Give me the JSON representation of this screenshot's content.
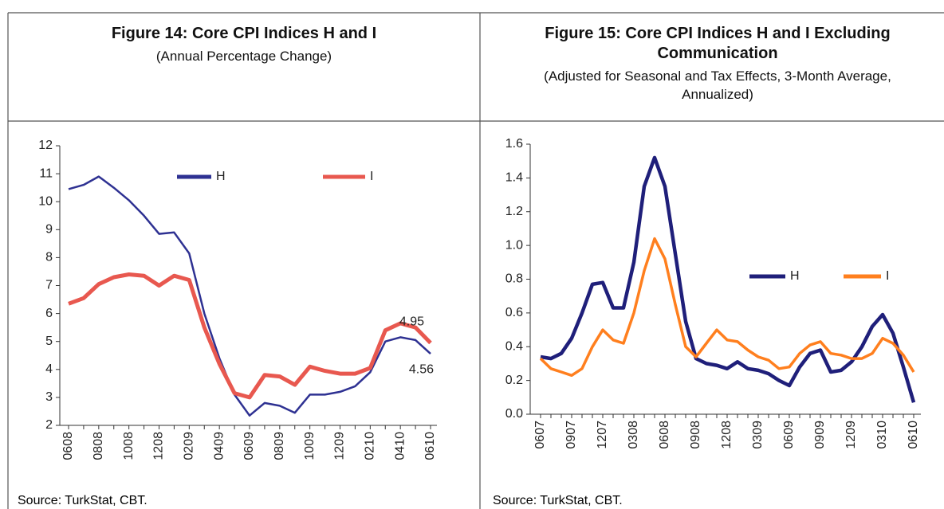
{
  "chart_data": [
    {
      "type": "line",
      "title": "Figure 14: Core CPI Indices H and I",
      "subtitle": "(Annual Percentage Change)",
      "source": "Source: TurkStat, CBT.",
      "categories": [
        "0608",
        null,
        "0808",
        null,
        "1008",
        null,
        "1208",
        null,
        "0209",
        null,
        "0409",
        null,
        "0609",
        null,
        "0809",
        null,
        "1009",
        null,
        "1209",
        null,
        "0210",
        null,
        "0410",
        null,
        "0610"
      ],
      "ylim": [
        2,
        12
      ],
      "yticks": [
        2,
        3,
        4,
        5,
        6,
        7,
        8,
        9,
        10,
        11,
        12
      ],
      "series": [
        {
          "name": "H",
          "color": "#2e3192",
          "values": [
            10.45,
            10.6,
            10.9,
            10.5,
            10.05,
            9.5,
            8.85,
            8.9,
            8.15,
            6.0,
            4.4,
            3.1,
            2.35,
            2.8,
            2.7,
            2.45,
            3.1,
            3.1,
            3.2,
            3.4,
            3.9,
            5.0,
            5.15,
            5.05,
            4.56
          ],
          "value_labels": [
            null,
            null,
            null,
            null,
            null,
            null,
            null,
            null,
            null,
            null,
            null,
            null,
            null,
            null,
            null,
            null,
            null,
            null,
            null,
            null,
            null,
            null,
            null,
            null,
            "4.56"
          ]
        },
        {
          "name": "I",
          "color": "#e8584f",
          "values": [
            6.35,
            6.55,
            7.05,
            7.3,
            7.4,
            7.35,
            7.0,
            7.35,
            7.2,
            5.5,
            4.2,
            3.15,
            3.0,
            3.8,
            3.75,
            3.45,
            4.1,
            3.95,
            3.85,
            3.85,
            4.05,
            5.4,
            5.65,
            5.5,
            4.95
          ],
          "value_labels": [
            null,
            null,
            null,
            null,
            null,
            null,
            null,
            null,
            null,
            null,
            null,
            null,
            null,
            null,
            null,
            null,
            null,
            null,
            null,
            null,
            null,
            null,
            null,
            null,
            "4.95"
          ]
        }
      ]
    },
    {
      "type": "line",
      "title": "Figure 15: Core CPI Indices H and I Excluding Communication",
      "subtitle": "(Adjusted for Seasonal and Tax Effects, 3-Month Average, Annualized)",
      "source": "Source: TurkStat, CBT.",
      "categories": [
        "0607",
        null,
        null,
        "0907",
        null,
        null,
        "1207",
        null,
        null,
        "0308",
        null,
        null,
        "0608",
        null,
        null,
        "0908",
        null,
        null,
        "1208",
        null,
        null,
        "0309",
        null,
        null,
        "0609",
        null,
        null,
        "0909",
        null,
        null,
        "1209",
        null,
        null,
        "0310",
        null,
        null,
        "0610"
      ],
      "ylim": [
        0,
        1.6
      ],
      "yticks": [
        {
          "value": 0,
          "label": "0.0"
        },
        0.2,
        0.4,
        0.6,
        0.8,
        {
          "value": 1,
          "label": "1.0"
        },
        1.2,
        1.4,
        1.6
      ],
      "series": [
        {
          "name": "H",
          "color": "#1f1f7a",
          "values": [
            0.34,
            0.33,
            0.36,
            0.45,
            0.6,
            0.77,
            0.78,
            0.63,
            0.63,
            0.9,
            1.35,
            1.52,
            1.35,
            0.95,
            0.55,
            0.33,
            0.3,
            0.29,
            0.27,
            0.31,
            0.27,
            0.26,
            0.24,
            0.2,
            0.17,
            0.28,
            0.36,
            0.38,
            0.25,
            0.26,
            0.31,
            0.4,
            0.52,
            0.59,
            0.48,
            0.28,
            0.07
          ]
        },
        {
          "name": "I",
          "color": "#ff7f1e",
          "values": [
            0.33,
            0.27,
            0.25,
            0.23,
            0.27,
            0.4,
            0.5,
            0.44,
            0.42,
            0.6,
            0.85,
            1.04,
            0.92,
            0.65,
            0.4,
            0.34,
            0.42,
            0.5,
            0.44,
            0.43,
            0.38,
            0.34,
            0.32,
            0.27,
            0.28,
            0.36,
            0.41,
            0.43,
            0.36,
            0.35,
            0.33,
            0.33,
            0.36,
            0.45,
            0.42,
            0.35,
            0.25
          ]
        }
      ]
    }
  ]
}
